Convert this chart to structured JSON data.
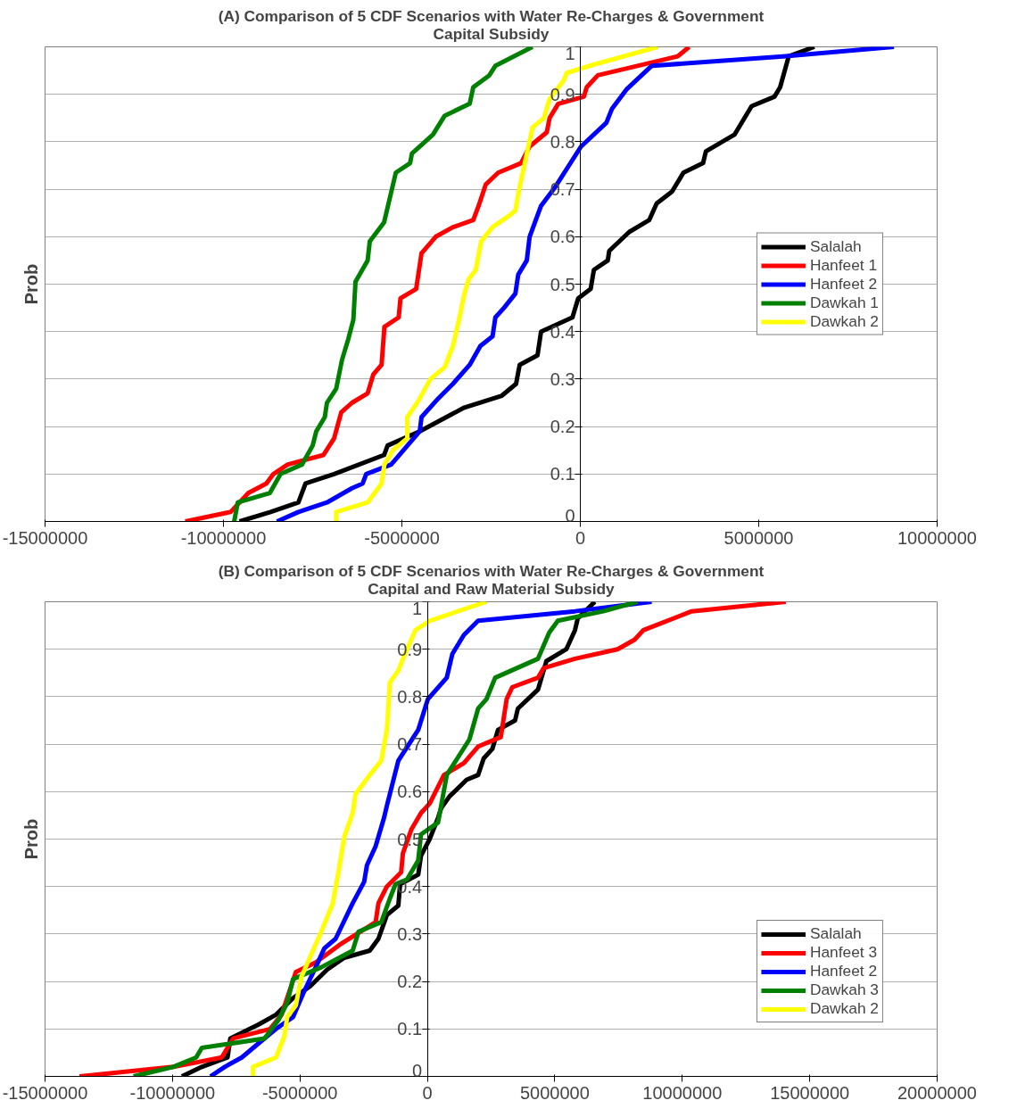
{
  "chart_data": [
    {
      "type": "line",
      "title": "(A) Comparison of 5 CDF Scenarios with Water Re-Charges & Government Capital Subsidy",
      "ylabel": "Prob",
      "xlim": [
        -15000000,
        10000000
      ],
      "xticks": [
        -15000000,
        -10000000,
        -5000000,
        0,
        5000000,
        10000000
      ],
      "ylim": [
        0,
        1
      ],
      "yticks": [
        0,
        0.1,
        0.2,
        0.3,
        0.4,
        0.5,
        0.6,
        0.7,
        0.8,
        0.9,
        1
      ],
      "grid": "y",
      "legend": "right",
      "series": [
        {
          "name": "Salalah",
          "color": "#000000",
          "x": [
            -9550000,
            -8680000,
            -7900000,
            -7700000,
            -6900000,
            -5500000,
            -5400000,
            -4500000,
            -3250000,
            -2200000,
            -1800000,
            -1700000,
            -1200000,
            -1100000,
            -220000,
            -60000,
            290000,
            380000,
            770000,
            810000,
            1370000,
            1930000,
            2140000,
            2570000,
            2890000,
            3440000,
            3520000,
            4320000,
            4800000,
            5440000,
            5600000,
            5840000,
            6560000
          ],
          "values": [
            0,
            0.02,
            0.04,
            0.08,
            0.1,
            0.14,
            0.16,
            0.19,
            0.24,
            0.265,
            0.29,
            0.33,
            0.35,
            0.4,
            0.43,
            0.47,
            0.49,
            0.53,
            0.55,
            0.57,
            0.61,
            0.635,
            0.67,
            0.695,
            0.735,
            0.755,
            0.78,
            0.815,
            0.875,
            0.895,
            0.915,
            0.98,
            1
          ]
        },
        {
          "name": "Hanfeet 1",
          "color": "#ff0000",
          "x": [
            -11070000,
            -9800000,
            -9300000,
            -8800000,
            -8600000,
            -8200000,
            -7200000,
            -6900000,
            -6700000,
            -6400000,
            -5960000,
            -5800000,
            -5570000,
            -5490000,
            -5090000,
            -5040000,
            -4600000,
            -4450000,
            -4050000,
            -3570000,
            -3000000,
            -2850000,
            -2650000,
            -2300000,
            -1660000,
            -1420000,
            -940000,
            -860000,
            -620000,
            100000,
            180000,
            490000,
            2730000,
            3050000
          ],
          "values": [
            0,
            0.02,
            0.06,
            0.08,
            0.1,
            0.12,
            0.14,
            0.175,
            0.23,
            0.25,
            0.27,
            0.31,
            0.33,
            0.41,
            0.43,
            0.47,
            0.49,
            0.565,
            0.6,
            0.62,
            0.635,
            0.665,
            0.71,
            0.735,
            0.755,
            0.79,
            0.82,
            0.85,
            0.88,
            0.895,
            0.915,
            0.94,
            0.98,
            1
          ]
        },
        {
          "name": "Hanfeet 2",
          "color": "#0000ff",
          "x": [
            -8500000,
            -7900000,
            -7100000,
            -6400000,
            -6100000,
            -6000000,
            -5300000,
            -4500000,
            -4450000,
            -3970000,
            -3570000,
            -3100000,
            -2800000,
            -2460000,
            -2380000,
            -2140000,
            -1820000,
            -1740000,
            -1500000,
            -1420000,
            -1100000,
            -700000,
            20000,
            730000,
            890000,
            1290000,
            1930000,
            2010000,
            5680000,
            8790000
          ],
          "values": [
            0,
            0.02,
            0.04,
            0.07,
            0.08,
            0.1,
            0.12,
            0.19,
            0.22,
            0.26,
            0.29,
            0.33,
            0.37,
            0.39,
            0.43,
            0.45,
            0.48,
            0.52,
            0.55,
            0.6,
            0.665,
            0.705,
            0.79,
            0.84,
            0.87,
            0.91,
            0.955,
            0.96,
            0.98,
            1
          ]
        },
        {
          "name": "Dawkah 1",
          "color": "#008000",
          "x": [
            -9700000,
            -9600000,
            -8700000,
            -8400000,
            -7800000,
            -7500000,
            -7400000,
            -7160000,
            -7100000,
            -6840000,
            -6680000,
            -6500000,
            -6360000,
            -6300000,
            -5960000,
            -5900000,
            -5500000,
            -5170000,
            -4770000,
            -4720000,
            -4130000,
            -3800000,
            -3100000,
            -3000000,
            -2550000,
            -2380000,
            -1340000
          ],
          "values": [
            0,
            0.04,
            0.06,
            0.1,
            0.12,
            0.16,
            0.19,
            0.22,
            0.25,
            0.28,
            0.34,
            0.385,
            0.425,
            0.505,
            0.55,
            0.59,
            0.63,
            0.735,
            0.755,
            0.775,
            0.815,
            0.855,
            0.88,
            0.915,
            0.94,
            0.96,
            1
          ]
        },
        {
          "name": "Dawkah 2",
          "color": "#ffff00",
          "x": [
            -6840000,
            -6840000,
            -5960000,
            -5570000,
            -5490000,
            -5250000,
            -4850000,
            -4850000,
            -4530000,
            -4200000,
            -3800000,
            -3570000,
            -3400000,
            -3250000,
            -3130000,
            -2930000,
            -2780000,
            -2460000,
            -1980000,
            -1820000,
            -1740000,
            -1500000,
            -1340000,
            -1020000,
            -860000,
            -460000,
            -380000,
            260000,
            2170000
          ],
          "values": [
            0,
            0.02,
            0.04,
            0.08,
            0.12,
            0.15,
            0.175,
            0.22,
            0.255,
            0.3,
            0.325,
            0.37,
            0.425,
            0.48,
            0.51,
            0.53,
            0.59,
            0.62,
            0.645,
            0.655,
            0.69,
            0.775,
            0.83,
            0.85,
            0.89,
            0.93,
            0.945,
            0.96,
            1
          ]
        }
      ]
    },
    {
      "type": "line",
      "title": "(B) Comparison of 5 CDF Scenarios with Water Re-Charges & Government Capital and Raw Material Subsidy",
      "ylabel": "Prob",
      "xlim": [
        -15000000,
        20000000
      ],
      "xticks": [
        -15000000,
        -10000000,
        -5000000,
        0,
        5000000,
        10000000,
        15000000,
        20000000
      ],
      "ylim": [
        0,
        1
      ],
      "yticks": [
        0,
        0.1,
        0.2,
        0.3,
        0.4,
        0.5,
        0.6,
        0.7,
        0.8,
        0.9,
        1
      ],
      "grid": "y",
      "legend": "bottom right",
      "series": [
        {
          "name": "Salalah",
          "color": "#000000",
          "x": [
            -9630000,
            -8850000,
            -7840000,
            -7730000,
            -6600000,
            -5940000,
            -5270000,
            -4600000,
            -3930000,
            -3260000,
            -2260000,
            -1920000,
            -1590000,
            -1140000,
            -1070000,
            -360000,
            -250000,
            90000,
            420000,
            540000,
            870000,
            1540000,
            1990000,
            2210000,
            2550000,
            2770000,
            3440000,
            3550000,
            4340000,
            4670000,
            5450000,
            5790000,
            5900000,
            6570000
          ],
          "values": [
            0,
            0.02,
            0.04,
            0.08,
            0.11,
            0.13,
            0.165,
            0.19,
            0.225,
            0.25,
            0.265,
            0.29,
            0.34,
            0.36,
            0.405,
            0.425,
            0.465,
            0.5,
            0.545,
            0.565,
            0.59,
            0.625,
            0.635,
            0.67,
            0.69,
            0.73,
            0.75,
            0.775,
            0.815,
            0.875,
            0.9,
            0.94,
            0.965,
            1
          ]
        },
        {
          "name": "Hanfeet 3",
          "color": "#ff0000",
          "x": [
            -13650000,
            -9970000,
            -8070000,
            -7620000,
            -6170000,
            -5720000,
            -5160000,
            -4380000,
            -3370000,
            -2030000,
            -1920000,
            -1590000,
            -1030000,
            -960000,
            -630000,
            -250000,
            90000,
            650000,
            1430000,
            1990000,
            2880000,
            3110000,
            3330000,
            4340000,
            4560000,
            5790000,
            7460000,
            8130000,
            8470000,
            10370000,
            14060000
          ],
          "values": [
            0,
            0.02,
            0.04,
            0.08,
            0.1,
            0.13,
            0.22,
            0.24,
            0.28,
            0.325,
            0.365,
            0.4,
            0.43,
            0.47,
            0.52,
            0.555,
            0.575,
            0.635,
            0.66,
            0.695,
            0.715,
            0.795,
            0.82,
            0.84,
            0.86,
            0.88,
            0.9,
            0.92,
            0.94,
            0.98,
            1
          ]
        },
        {
          "name": "Hanfeet 2",
          "color": "#0000ff",
          "x": [
            -8510000,
            -7950000,
            -7280000,
            -6280000,
            -5940000,
            -5270000,
            -4830000,
            -4380000,
            -4040000,
            -3600000,
            -2930000,
            -2480000,
            -2370000,
            -2030000,
            -1700000,
            -1590000,
            -1140000,
            -360000,
            20000,
            760000,
            980000,
            1430000,
            1990000,
            5790000,
            8800000
          ],
          "values": [
            0,
            0.02,
            0.04,
            0.085,
            0.1,
            0.125,
            0.18,
            0.23,
            0.27,
            0.29,
            0.365,
            0.41,
            0.445,
            0.485,
            0.545,
            0.57,
            0.665,
            0.73,
            0.795,
            0.84,
            0.89,
            0.93,
            0.96,
            0.98,
            1
          ]
        },
        {
          "name": "Dawkah 3",
          "color": "#008000",
          "x": [
            -11530000,
            -9970000,
            -9070000,
            -8850000,
            -6390000,
            -5830000,
            -5500000,
            -5270000,
            -4160000,
            -2930000,
            -2700000,
            -1810000,
            -1470000,
            -1250000,
            -800000,
            -360000,
            -250000,
            420000,
            760000,
            1650000,
            1990000,
            2320000,
            2660000,
            4340000,
            4780000,
            5120000,
            6900000,
            8240000
          ],
          "values": [
            0,
            0.02,
            0.04,
            0.06,
            0.08,
            0.12,
            0.155,
            0.205,
            0.23,
            0.265,
            0.305,
            0.325,
            0.375,
            0.405,
            0.415,
            0.455,
            0.51,
            0.535,
            0.635,
            0.71,
            0.775,
            0.795,
            0.84,
            0.88,
            0.935,
            0.96,
            0.98,
            1
          ]
        },
        {
          "name": "Dawkah 2",
          "color": "#ffff00",
          "x": [
            -6840000,
            -6840000,
            -5940000,
            -5610000,
            -5500000,
            -5160000,
            -4940000,
            -4490000,
            -4160000,
            -3710000,
            -3490000,
            -3260000,
            -2930000,
            -2820000,
            -2260000,
            -1810000,
            -1590000,
            -1470000,
            -1140000,
            -920000,
            -470000,
            90000,
            2320000
          ],
          "values": [
            0,
            0.02,
            0.04,
            0.085,
            0.125,
            0.15,
            0.21,
            0.265,
            0.305,
            0.365,
            0.43,
            0.505,
            0.555,
            0.595,
            0.635,
            0.665,
            0.73,
            0.83,
            0.855,
            0.885,
            0.94,
            0.96,
            1
          ]
        }
      ]
    }
  ]
}
